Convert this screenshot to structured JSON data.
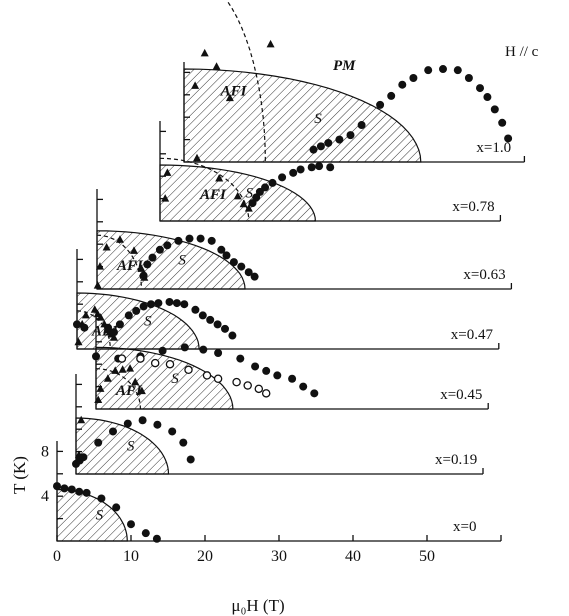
{
  "chart_data": {
    "type": "scatter",
    "title": "",
    "annotation_field": "H // c",
    "xlabel": "μ₀H (T)",
    "ylabel": "T (K)",
    "x_ticks": [
      "0",
      "10",
      "20",
      "30",
      "40",
      "50"
    ],
    "y_ticks": [
      "4",
      "8"
    ],
    "xlim": [
      0,
      50
    ],
    "ylim": [
      0,
      10
    ],
    "region_labels": {
      "pm": "PM",
      "afi": "AFI",
      "sc": "S"
    },
    "series": [
      {
        "name": "x=0",
        "sc_dome": {
          "h_max": 9.5,
          "t_max": 4.6
        },
        "closed": [
          [
            0,
            4.9
          ],
          [
            1,
            4.7
          ],
          [
            2,
            4.6
          ],
          [
            3,
            4.4
          ],
          [
            4,
            4.3
          ],
          [
            6,
            3.8
          ],
          [
            8,
            3.0
          ],
          [
            10,
            1.5
          ],
          [
            12,
            0.7
          ],
          [
            13.5,
            0.2
          ]
        ],
        "open": [],
        "triangles": [],
        "afi": null
      },
      {
        "name": "x=0.19",
        "sc_dome": {
          "h_max": 12.5,
          "t_max": 5.0
        },
        "closed": [
          [
            0,
            0.9
          ],
          [
            0.5,
            1.2
          ],
          [
            1,
            1.5
          ],
          [
            3,
            2.8
          ],
          [
            5,
            3.8
          ],
          [
            7,
            4.5
          ],
          [
            9,
            4.8
          ],
          [
            11,
            4.4
          ],
          [
            13,
            3.8
          ],
          [
            14.5,
            2.8
          ],
          [
            15.5,
            1.3
          ]
        ],
        "open": [],
        "triangles": [
          [
            0.4,
            1.7
          ],
          [
            0.7,
            4.8
          ]
        ],
        "afi": null
      },
      {
        "name": "x=0.45",
        "sc_dome": {
          "h_max": 18.5,
          "t_max": 5.5
        },
        "closed": [
          [
            0,
            4.7
          ],
          [
            3,
            4.5
          ],
          [
            6,
            4.7
          ],
          [
            9,
            5.2
          ],
          [
            12,
            5.5
          ],
          [
            14.5,
            5.3
          ],
          [
            16.5,
            5.0
          ],
          [
            19.5,
            4.5
          ],
          [
            21.5,
            3.8
          ],
          [
            23,
            3.4
          ],
          [
            24.5,
            3.0
          ],
          [
            26.5,
            2.7
          ],
          [
            28,
            2.0
          ],
          [
            29.5,
            1.4
          ]
        ],
        "open": [
          [
            3.5,
            4.5
          ],
          [
            6,
            4.5
          ],
          [
            8,
            4.1
          ],
          [
            10,
            4.0
          ],
          [
            12.5,
            3.5
          ],
          [
            15,
            3.0
          ],
          [
            16.5,
            2.7
          ],
          [
            19,
            2.4
          ],
          [
            20.5,
            2.1
          ],
          [
            22,
            1.8
          ],
          [
            23,
            1.4
          ]
        ],
        "triangles": [
          [
            0.3,
            0.8
          ],
          [
            0.6,
            1.8
          ],
          [
            1.6,
            2.7
          ],
          [
            2.6,
            3.4
          ],
          [
            3.6,
            3.5
          ],
          [
            4.6,
            3.6
          ],
          [
            5.3,
            2.4
          ],
          [
            6.2,
            1.6
          ]
        ],
        "afi": {
          "h_max": 6.0,
          "t_max": 3.6
        }
      },
      {
        "name": "x=0.47",
        "sc_dome": {
          "h_max": 16.5,
          "t_max": 5.0
        },
        "closed": [
          [
            0,
            2.2
          ],
          [
            1,
            1.9
          ],
          [
            4.2,
            1.9
          ],
          [
            5,
            1.5
          ],
          [
            5.8,
            2.2
          ],
          [
            7,
            3.0
          ],
          [
            8,
            3.4
          ],
          [
            9,
            3.8
          ],
          [
            10,
            4.0
          ],
          [
            11,
            4.1
          ],
          [
            12.5,
            4.2
          ],
          [
            13.5,
            4.1
          ],
          [
            14.5,
            4.0
          ],
          [
            16,
            3.5
          ],
          [
            17,
            3.0
          ],
          [
            18,
            2.6
          ],
          [
            19,
            2.2
          ],
          [
            20,
            1.8
          ],
          [
            21,
            1.2
          ]
        ],
        "open": [],
        "triangles": [
          [
            0.2,
            0.6
          ],
          [
            0.7,
            2.2
          ],
          [
            1.2,
            3.0
          ],
          [
            2.4,
            3.5
          ],
          [
            2.8,
            3.1
          ],
          [
            3.2,
            2.8
          ],
          [
            3.7,
            2.2
          ],
          [
            4.1,
            1.7
          ],
          [
            4.4,
            1.5
          ],
          [
            4.7,
            1.3
          ],
          [
            5.0,
            1.0
          ]
        ],
        "afi": {
          "h_max": 4.5,
          "t_max": 3.4
        }
      },
      {
        "name": "x=0.63",
        "sc_dome": {
          "h_max": 20.0,
          "t_max": 5.2
        },
        "closed": [
          [
            6.3,
            1.2
          ],
          [
            6.8,
            2.2
          ],
          [
            7.5,
            2.8
          ],
          [
            8.5,
            3.5
          ],
          [
            9.5,
            3.9
          ],
          [
            11,
            4.3
          ],
          [
            12.5,
            4.5
          ],
          [
            14,
            4.5
          ],
          [
            15.5,
            4.3
          ],
          [
            16.8,
            3.5
          ],
          [
            17.5,
            3.0
          ],
          [
            18.5,
            2.4
          ],
          [
            19.5,
            2.0
          ],
          [
            20.5,
            1.5
          ],
          [
            21.3,
            1.1
          ]
        ],
        "open": [],
        "triangles": [
          [
            0.1,
            0.3
          ],
          [
            0.4,
            2.0
          ],
          [
            1.3,
            3.7
          ],
          [
            3.1,
            4.4
          ],
          [
            5.0,
            3.4
          ],
          [
            6.0,
            1.8
          ],
          [
            6.4,
            1.0
          ]
        ],
        "afi": {
          "h_max": 6.0,
          "t_max": 4.8
        }
      },
      {
        "name": "x=0.78",
        "sc_dome": {
          "h_max": 21.0,
          "t_max": 5.0
        },
        "closed": [
          [
            12.5,
            1.6
          ],
          [
            13,
            2.1
          ],
          [
            13.5,
            2.6
          ],
          [
            14.2,
            3.0
          ],
          [
            15.2,
            3.4
          ],
          [
            16.5,
            3.9
          ],
          [
            18,
            4.3
          ],
          [
            19,
            4.6
          ],
          [
            20.5,
            4.8
          ],
          [
            21.5,
            4.9
          ],
          [
            23,
            4.8
          ]
        ],
        "open": [],
        "triangles": [
          [
            0.7,
            2.0
          ],
          [
            1.0,
            4.3
          ],
          [
            5.0,
            5.6
          ],
          [
            8.0,
            3.8
          ],
          [
            10.5,
            2.2
          ],
          [
            11.3,
            1.5
          ],
          [
            12.0,
            1.1
          ]
        ],
        "afi": {
          "h_max": 12.0,
          "t_max": 5.6
        }
      },
      {
        "name": "x=1.0",
        "sc_dome": {
          "h_max": 32.0,
          "t_max": 8.3
        },
        "closed": [
          [
            17.5,
            1.1
          ],
          [
            18.5,
            1.4
          ],
          [
            19.5,
            1.7
          ],
          [
            21,
            2.0
          ],
          [
            22.5,
            2.4
          ],
          [
            24,
            3.3
          ],
          [
            26.5,
            5.1
          ],
          [
            28,
            5.9
          ],
          [
            29.5,
            6.9
          ],
          [
            31,
            7.5
          ],
          [
            33,
            8.2
          ],
          [
            35,
            8.3
          ],
          [
            37,
            8.2
          ],
          [
            38.5,
            7.5
          ],
          [
            40,
            6.6
          ],
          [
            41,
            5.8
          ],
          [
            42,
            4.7
          ],
          [
            43,
            3.5
          ],
          [
            43.8,
            2.1
          ]
        ],
        "open": [],
        "triangles": [
          [
            0,
            17.7
          ],
          [
            1.5,
            6.8
          ],
          [
            2.8,
            9.7
          ],
          [
            3.5,
            15.8
          ],
          [
            4.4,
            8.5
          ],
          [
            6.2,
            5.7
          ],
          [
            11.5,
            17.6
          ],
          [
            11.7,
            10.5
          ]
        ],
        "afi": {
          "h_max": 11.0,
          "t_max": 17.0
        }
      }
    ]
  }
}
